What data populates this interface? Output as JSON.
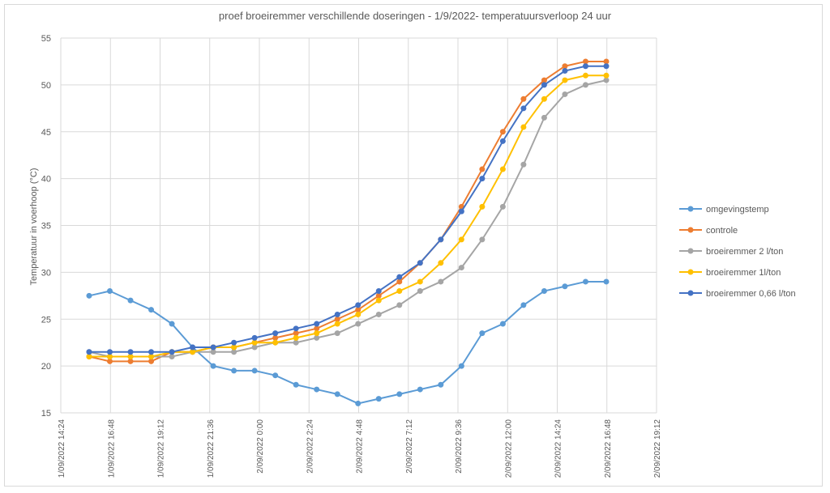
{
  "chart_data": {
    "type": "line",
    "title": "proef broeiremmer verschillende doseringen - 1/9/2022-  temperatuursverloop 24 uur",
    "xlabel": "",
    "ylabel": "Temperatuur in voerhoop (°C)",
    "ylim": [
      15,
      55
    ],
    "yticks": [
      "15",
      "20",
      "25",
      "30",
      "35",
      "40",
      "45",
      "50",
      "55"
    ],
    "xlim_hours": [
      0,
      28.8
    ],
    "xticks": [
      "1/09/2022 14:24",
      "1/09/2022 16:48",
      "1/09/2022 19:12",
      "1/09/2022 21:36",
      "2/09/2022 0:00",
      "2/09/2022 2:24",
      "2/09/2022 4:48",
      "2/09/2022 7:12",
      "2/09/2022 9:36",
      "2/09/2022 12:00",
      "2/09/2022 14:24",
      "2/09/2022 16:48",
      "2/09/2022 19:12"
    ],
    "x_hours": [
      1.37,
      2.37,
      3.37,
      4.37,
      5.37,
      6.37,
      7.37,
      8.37,
      9.37,
      10.37,
      11.37,
      12.37,
      13.37,
      14.37,
      15.37,
      16.37,
      17.37,
      18.37,
      19.37,
      20.37,
      21.37,
      22.37,
      23.37,
      24.37,
      25.37,
      26.37
    ],
    "grid": true,
    "legend_position": "right",
    "series": [
      {
        "name": "omgevingstemp",
        "color": "#5b9bd5",
        "values": [
          27.5,
          28,
          27,
          26,
          24.5,
          22,
          20,
          19.5,
          19.5,
          19,
          18,
          17.5,
          17,
          16,
          16.5,
          17,
          17.5,
          18,
          20,
          23.5,
          24.5,
          26.5,
          28,
          28.5,
          29,
          29
        ]
      },
      {
        "name": "controle",
        "color": "#ed7d31",
        "values": [
          21,
          20.5,
          20.5,
          20.5,
          21.5,
          21.5,
          22,
          22,
          22.5,
          23,
          23.5,
          24,
          25,
          26,
          27.5,
          29,
          31,
          33.5,
          37,
          41,
          45,
          48.5,
          50.5,
          52,
          52.5,
          52.5
        ]
      },
      {
        "name": "broeiremmer 2 l/ton",
        "color": "#a5a5a5",
        "values": [
          21.5,
          21,
          21,
          21,
          21,
          21.5,
          21.5,
          21.5,
          22,
          22.5,
          22.5,
          23,
          23.5,
          24.5,
          25.5,
          26.5,
          28,
          29,
          30.5,
          33.5,
          37,
          41.5,
          46.5,
          49,
          50,
          50.5
        ]
      },
      {
        "name": "broeiremmer 1l/ton",
        "color": "#ffc000",
        "values": [
          21,
          21,
          21,
          21,
          21.5,
          21.5,
          22,
          22,
          22.5,
          22.5,
          23,
          23.5,
          24.5,
          25.5,
          27,
          28,
          29,
          31,
          33.5,
          37,
          41,
          45.5,
          48.5,
          50.5,
          51,
          51
        ]
      },
      {
        "name": "broeiremmer 0,66 l/ton",
        "color": "#4472c4",
        "values": [
          21.5,
          21.5,
          21.5,
          21.5,
          21.5,
          22,
          22,
          22.5,
          23,
          23.5,
          24,
          24.5,
          25.5,
          26.5,
          28,
          29.5,
          31,
          33.5,
          36.5,
          40,
          44,
          47.5,
          50,
          51.5,
          52,
          52
        ]
      }
    ]
  }
}
